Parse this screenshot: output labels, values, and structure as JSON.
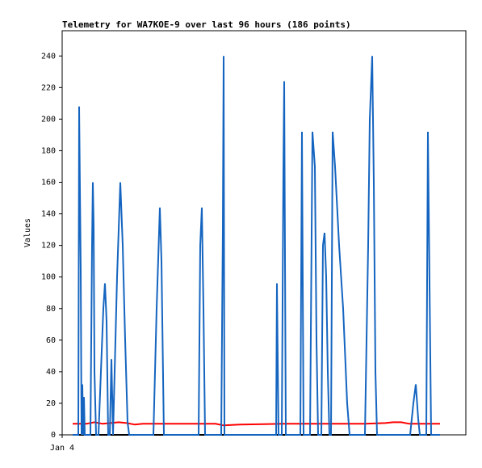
{
  "chart_data": {
    "type": "line",
    "title": "Telemetry for WA7KOE-9 over last 96 hours (186 points)",
    "ylabel": "Values",
    "xlim": [
      0,
      100
    ],
    "ylim": [
      0,
      256
    ],
    "xticks": [
      {
        "value": 0,
        "label": "Jan 4"
      }
    ],
    "yticks": [
      0,
      20,
      40,
      60,
      80,
      100,
      120,
      140,
      160,
      180,
      200,
      220,
      240
    ],
    "series": [
      {
        "color": "#000000",
        "x": [
          2.6,
          93.6
        ],
        "values": [
          0,
          0
        ]
      },
      {
        "color": "#ff0000",
        "x": [
          2.6,
          6,
          8,
          10,
          12,
          14,
          16,
          18,
          20,
          25,
          30,
          38,
          40,
          44,
          50,
          55,
          60,
          65,
          70,
          75,
          80,
          82,
          84,
          86,
          90,
          93.6
        ],
        "values": [
          7,
          7,
          8,
          7,
          7.5,
          8,
          7.5,
          6.5,
          7,
          7,
          7,
          7,
          6,
          6.5,
          6.8,
          7,
          7,
          7,
          7,
          7,
          7.5,
          8,
          8,
          7,
          7,
          7
        ]
      },
      {
        "color": "#1565c0",
        "x": [
          2.6,
          4,
          4.2,
          4.6,
          4.8,
          5,
          5.2,
          5.4,
          5.6,
          7,
          7.4,
          7.6,
          7.8,
          8,
          8.4,
          9,
          9.6,
          10.2,
          10.6,
          11,
          11.4,
          11.8,
          12.2,
          12.6,
          13,
          13.6,
          14.4,
          15,
          15.6,
          16.2,
          16.6,
          22.6,
          23.4,
          24.2,
          24.6,
          25.2,
          33.8,
          34.2,
          34.6,
          35,
          35.4,
          39.4,
          39.8,
          40,
          40.2,
          53,
          53.2,
          53.4,
          53.6,
          54.4,
          54.8,
          55,
          55.2,
          55.4,
          59,
          59.4,
          59.8,
          61.4,
          62,
          62.6,
          63,
          63.4,
          64.2,
          64.6,
          65,
          65.4,
          65.8,
          66.2,
          66.6,
          67,
          67.6,
          68.6,
          69.6,
          70.6,
          71.2,
          75,
          75.8,
          76.2,
          76.8,
          77.2,
          77.6,
          78,
          86.2,
          87,
          87.6,
          88.2,
          88.6,
          90.2,
          90.6,
          91,
          91.4,
          93.6
        ],
        "values": [
          0,
          0,
          208,
          104,
          0,
          32,
          0,
          24,
          0,
          0,
          120,
          160,
          132,
          40,
          0,
          0,
          40,
          80,
          96,
          72,
          0,
          0,
          48,
          0,
          40,
          100,
          160,
          120,
          60,
          8,
          0,
          0,
          80,
          144,
          110,
          0,
          0,
          120,
          144,
          80,
          0,
          0,
          130,
          240,
          0,
          0,
          96,
          48,
          0,
          0,
          168,
          224,
          112,
          0,
          0,
          192,
          0,
          0,
          192,
          170,
          60,
          0,
          0,
          120,
          128,
          100,
          40,
          0,
          0,
          192,
          170,
          120,
          80,
          20,
          0,
          0,
          120,
          200,
          240,
          160,
          40,
          0,
          0,
          20,
          32,
          10,
          0,
          0,
          192,
          96,
          0,
          0
        ]
      }
    ]
  }
}
